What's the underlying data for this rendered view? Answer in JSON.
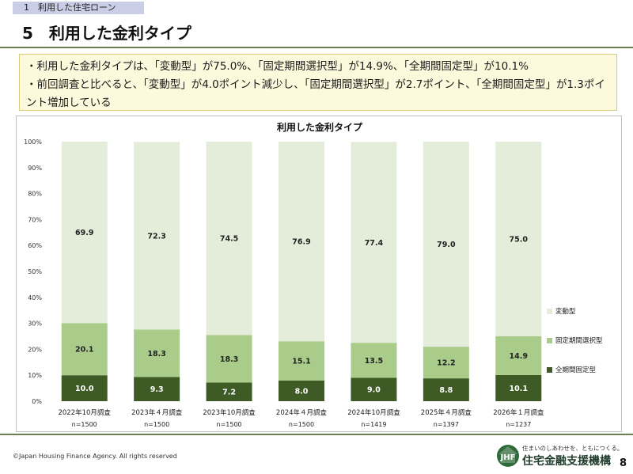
{
  "header": {
    "section_tag": "1　利用した住宅ローン",
    "page_title": "5　利用した金利タイプ"
  },
  "summary": {
    "line1": "・利用した金利タイプは、「変動型」が75.0%、「固定期間選択型」が14.9%、「全期間固定型」が10.1%",
    "line2": "・前回調査と比べると、「変動型」が4.0ポイント減少し、「固定期間選択型」が2.7ポイント、「全期間固定型」が1.3ポイント増加している"
  },
  "chart_data": {
    "type": "bar",
    "stacked": true,
    "title": "利用した金利タイプ",
    "categories": [
      "2022年10月調査",
      "2023年４月調査",
      "2023年10月調査",
      "2024年４月調査",
      "2024年10月調査",
      "2025年４月調査",
      "2026年１月調査"
    ],
    "sample_sizes": [
      "n=1500",
      "n=1500",
      "n=1500",
      "n=1500",
      "n=1419",
      "n=1397",
      "n=1237"
    ],
    "series": [
      {
        "name": "全期間固定型",
        "values": [
          10.0,
          9.3,
          7.2,
          8.0,
          9.0,
          8.8,
          10.1
        ],
        "labels": [
          "10.0",
          "9.3",
          "7.2",
          "8.0",
          "9.0",
          "8.8",
          "10.1"
        ],
        "color": "#3e5a25",
        "label_color": "#ffffff"
      },
      {
        "name": "固定期間選択型",
        "values": [
          20.1,
          18.3,
          18.3,
          15.1,
          13.5,
          12.2,
          14.9
        ],
        "labels": [
          "20.1",
          "18.3",
          "18.3",
          "15.1",
          "13.5",
          "12.2",
          "14.9"
        ],
        "color": "#a9cc8a",
        "label_color": "#222222"
      },
      {
        "name": "変動型",
        "values": [
          69.9,
          72.3,
          74.5,
          76.9,
          77.4,
          79.0,
          75.0
        ],
        "labels": [
          "69.9",
          "72.3",
          "74.5",
          "76.9",
          "77.4",
          "79.0",
          "75.0"
        ],
        "color": "#e3edd9",
        "label_color": "#222222"
      }
    ],
    "yticks": [
      "0%",
      "10%",
      "20%",
      "30%",
      "40%",
      "50%",
      "60%",
      "70%",
      "80%",
      "90%",
      "100%"
    ],
    "ylim": [
      0,
      100
    ],
    "grid": false,
    "legend_position": "right"
  },
  "footer": {
    "copyright": "©Japan Housing Finance Agency. All rights reserved",
    "tagline": "住まいのしあわせを、ともにつくる。",
    "org_name": "住宅金融支援機構",
    "logo_text": "JHF",
    "page_number": "8"
  },
  "colors": {
    "accent_rule": "#6b7f53",
    "summary_bg": "#fdf9dc",
    "section_tag_bg": "#c9cde6"
  }
}
